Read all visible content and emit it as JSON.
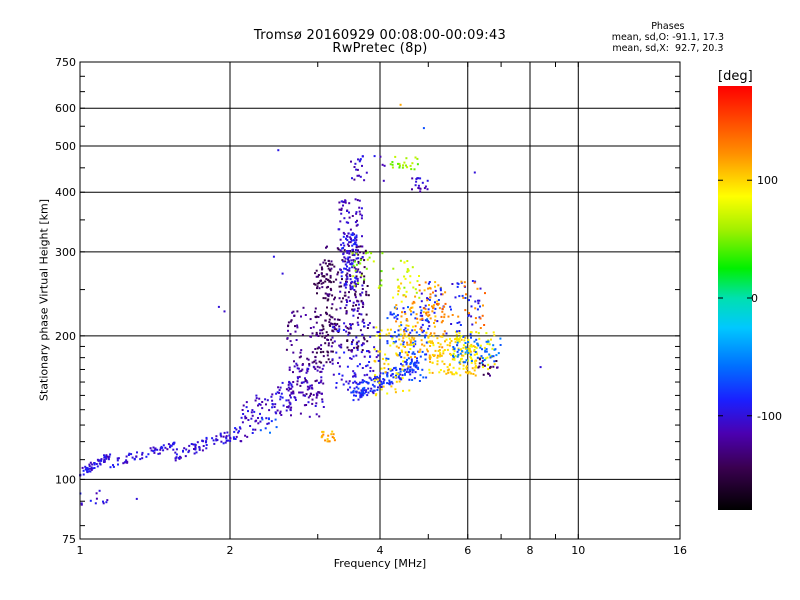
{
  "header": {
    "title_line1": "Tromsø 20160929 00:08:00-00:09:43",
    "title_line2": "RwPretec (8p)"
  },
  "phases": {
    "heading": "Phases",
    "line_o": "mean, sd,O: -91.1, 17.3",
    "line_x": "mean, sd,X:  92.7, 20.3"
  },
  "chart_data": {
    "type": "scatter",
    "xlabel": "Frequency [MHz]",
    "ylabel": "Stationary phase Virtual Height [km]",
    "xscale": "log",
    "yscale": "log",
    "xlim": [
      1,
      16
    ],
    "ylim": [
      75,
      750
    ],
    "xticks": [
      1,
      2,
      4,
      6,
      8,
      10,
      16
    ],
    "yticks": [
      75,
      100,
      200,
      300,
      400,
      500,
      600,
      750
    ],
    "grid": true,
    "colorbar": {
      "label": "[deg]",
      "range": [
        -180,
        180
      ],
      "ticks": [
        100,
        0,
        -100
      ],
      "colormap": "rainbow-black-to-red"
    },
    "clusters": [
      {
        "f": [
          1.0,
          1.15
        ],
        "h": [
          103,
          112
        ],
        "phase": -100,
        "n": 60,
        "shape": "band"
      },
      {
        "f": [
          1.15,
          1.55
        ],
        "h": [
          108,
          118
        ],
        "phase": -100,
        "n": 60,
        "shape": "band"
      },
      {
        "f": [
          1.55,
          2.1
        ],
        "h": [
          112,
          126
        ],
        "phase": -100,
        "n": 80,
        "shape": "band"
      },
      {
        "f": [
          2.1,
          2.7
        ],
        "h": [
          120,
          145
        ],
        "phase": -105,
        "n": 90,
        "shape": "ramp",
        "h2": [
          140,
          165
        ]
      },
      {
        "f": [
          2.6,
          3.1
        ],
        "h": [
          135,
          175
        ],
        "phase": -110,
        "n": 90
      },
      {
        "f": [
          1.0,
          1.1
        ],
        "h": [
          88,
          97
        ],
        "phase": -100,
        "n": 8
      },
      {
        "f": [
          1.1,
          1.15
        ],
        "h": [
          89,
          91
        ],
        "phase": -105,
        "n": 4
      },
      {
        "f": [
          2.6,
          3.05
        ],
        "h": [
          150,
          230
        ],
        "phase": -125,
        "n": 80
      },
      {
        "f": [
          2.95,
          3.25
        ],
        "h": [
          175,
          290
        ],
        "phase": -140,
        "n": 90
      },
      {
        "f": [
          3.1,
          3.8
        ],
        "h": [
          185,
          310
        ],
        "phase": -140,
        "n": 160
      },
      {
        "f": [
          3.3,
          3.7
        ],
        "h": [
          220,
          390
        ],
        "phase": -110,
        "n": 110
      },
      {
        "f": [
          3.35,
          3.6
        ],
        "h": [
          250,
          330
        ],
        "phase": -95,
        "n": 80
      },
      {
        "f": [
          3.2,
          4.0
        ],
        "h": [
          150,
          215
        ],
        "phase": -100,
        "n": 120
      },
      {
        "f": [
          3.5,
          4.8
        ],
        "h": [
          150,
          175
        ],
        "phase": -85,
        "n": 120,
        "shape": "band"
      },
      {
        "f": [
          4.1,
          5.0
        ],
        "h": [
          160,
          230
        ],
        "phase": -75,
        "n": 110
      },
      {
        "f": [
          4.3,
          5.4
        ],
        "h": [
          180,
          260
        ],
        "phase": 115,
        "n": 120
      },
      {
        "f": [
          3.9,
          4.7
        ],
        "h": [
          150,
          210
        ],
        "phase": 95,
        "n": 70
      },
      {
        "f": [
          5.0,
          6.3
        ],
        "h": [
          165,
          200
        ],
        "phase": 100,
        "n": 120
      },
      {
        "f": [
          5.6,
          6.8
        ],
        "h": [
          170,
          205
        ],
        "phase": 85,
        "n": 70
      },
      {
        "f": [
          5.6,
          7.0
        ],
        "h": [
          175,
          200
        ],
        "phase": -60,
        "n": 60
      },
      {
        "f": [
          4.8,
          6.4
        ],
        "h": [
          200,
          265
        ],
        "phase": -90,
        "n": 70
      },
      {
        "f": [
          4.8,
          6.5
        ],
        "h": [
          205,
          260
        ],
        "phase": 130,
        "n": 40
      },
      {
        "f": [
          6.3,
          6.9
        ],
        "h": [
          165,
          180
        ],
        "phase": -135,
        "n": 18
      },
      {
        "f": [
          3.5,
          4.5
        ],
        "h": [
          250,
          300
        ],
        "phase": 60,
        "n": 30
      },
      {
        "f": [
          4.2,
          4.8
        ],
        "h": [
          235,
          290
        ],
        "phase": 75,
        "n": 25
      },
      {
        "f": [
          4.2,
          4.8
        ],
        "h": [
          445,
          475
        ],
        "phase": 55,
        "n": 22
      },
      {
        "f": [
          4.6,
          5.0
        ],
        "h": [
          400,
          430
        ],
        "phase": -110,
        "n": 18
      },
      {
        "f": [
          3.4,
          3.8
        ],
        "h": [
          420,
          470
        ],
        "phase": -110,
        "n": 12
      },
      {
        "f": [
          3.0,
          3.2
        ],
        "h": [
          255,
          270
        ],
        "phase": -145,
        "n": 20
      },
      {
        "f": [
          3.05,
          3.25
        ],
        "h": [
          120,
          126
        ],
        "phase": 115,
        "n": 18
      },
      {
        "f": [
          2.3,
          2.5
        ],
        "h": [
          125,
          135
        ],
        "phase": -70,
        "n": 8
      },
      {
        "f": [
          3.6,
          4.1
        ],
        "h": [
          420,
          480
        ],
        "phase": -100,
        "n": 12
      }
    ],
    "points": [
      {
        "f": 4.4,
        "h": 610,
        "phase": 115
      },
      {
        "f": 4.9,
        "h": 545,
        "phase": -70
      },
      {
        "f": 2.5,
        "h": 490,
        "phase": -95
      },
      {
        "f": 1.9,
        "h": 230,
        "phase": -100
      },
      {
        "f": 1.95,
        "h": 225,
        "phase": -105
      },
      {
        "f": 2.45,
        "h": 293,
        "phase": -95
      },
      {
        "f": 2.55,
        "h": 270,
        "phase": -100
      },
      {
        "f": 6.2,
        "h": 440,
        "phase": -100
      },
      {
        "f": 8.4,
        "h": 172,
        "phase": -100
      },
      {
        "f": 1.3,
        "h": 91,
        "phase": -100
      }
    ]
  }
}
